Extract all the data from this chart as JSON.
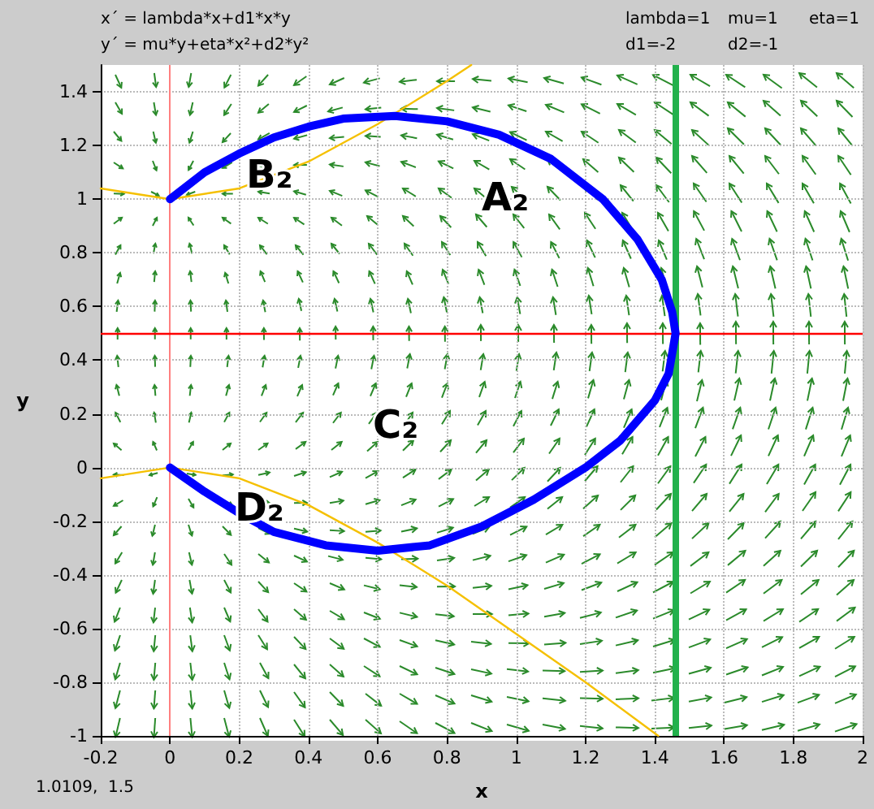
{
  "chart_data": {
    "type": "line",
    "xlabel": "x",
    "ylabel": "y",
    "xlim": [
      -0.2,
      2
    ],
    "xticks": [
      -0.2,
      0,
      0.2,
      0.4,
      0.6,
      0.8,
      1,
      1.2,
      1.4,
      1.6,
      1.8,
      2
    ],
    "ylim": [
      -1,
      1.5
    ],
    "yticks": [
      -1,
      -0.8,
      -0.6,
      -0.4,
      -0.2,
      0,
      0.2,
      0.4,
      0.6,
      0.8,
      1,
      1.2,
      1.4
    ],
    "grid": true,
    "marker": "none",
    "line_style": "solid",
    "series": [
      {
        "color": "#0000ff",
        "x": [
          0,
          0.1,
          0.2,
          0.3,
          0.4,
          0.5,
          0.65,
          0.8,
          0.95,
          1.1,
          1.25,
          1.35,
          1.42,
          1.45,
          1.46,
          1.44,
          1.4,
          1.3,
          1.2,
          1.05,
          0.9,
          0.75,
          0.6,
          0.45,
          0.3,
          0.2,
          0.1,
          0
        ],
        "values": [
          1,
          1.1,
          1.17,
          1.23,
          1.27,
          1.3,
          1.31,
          1.29,
          1.24,
          1.15,
          1.0,
          0.85,
          0.7,
          0.58,
          0.5,
          0.35,
          0.25,
          0.1,
          0.0,
          -0.12,
          -0.22,
          -0.29,
          -0.31,
          -0.29,
          -0.24,
          -0.17,
          -0.09,
          0
        ]
      },
      {
        "color": "#f5c000",
        "x": [
          -0.2,
          0,
          0.2,
          0.4,
          0.6,
          0.8,
          0.87
        ],
        "values": [
          1.04,
          1,
          1.04,
          1.14,
          1.28,
          1.44,
          1.5
        ]
      },
      {
        "color": "#f5c000",
        "x": [
          -0.2,
          0,
          0.2,
          0.4,
          0.6,
          0.8,
          1.0,
          1.2,
          1.41
        ],
        "values": [
          -0.04,
          0,
          -0.04,
          -0.14,
          -0.28,
          -0.44,
          -0.62,
          -0.8,
          -1
        ]
      }
    ],
    "ref_lines": [
      {
        "axis": "x",
        "value": 0,
        "color": "#ff8080"
      },
      {
        "axis": "y",
        "value": 0.5,
        "color": "#ff0000"
      },
      {
        "axis": "x",
        "value": 1.46,
        "color": "#22b14c"
      }
    ],
    "annotations": [
      "x´ = lambda*x+d1*x*y",
      "y´ = mu*y+eta*x²+d2*y²",
      "lambda=1",
      "mu=1",
      "eta=1",
      "d1=-2",
      "d2=-1",
      "1.0109,  1.5",
      "A₂",
      "B₂",
      "C₂",
      "D₂"
    ]
  }
}
